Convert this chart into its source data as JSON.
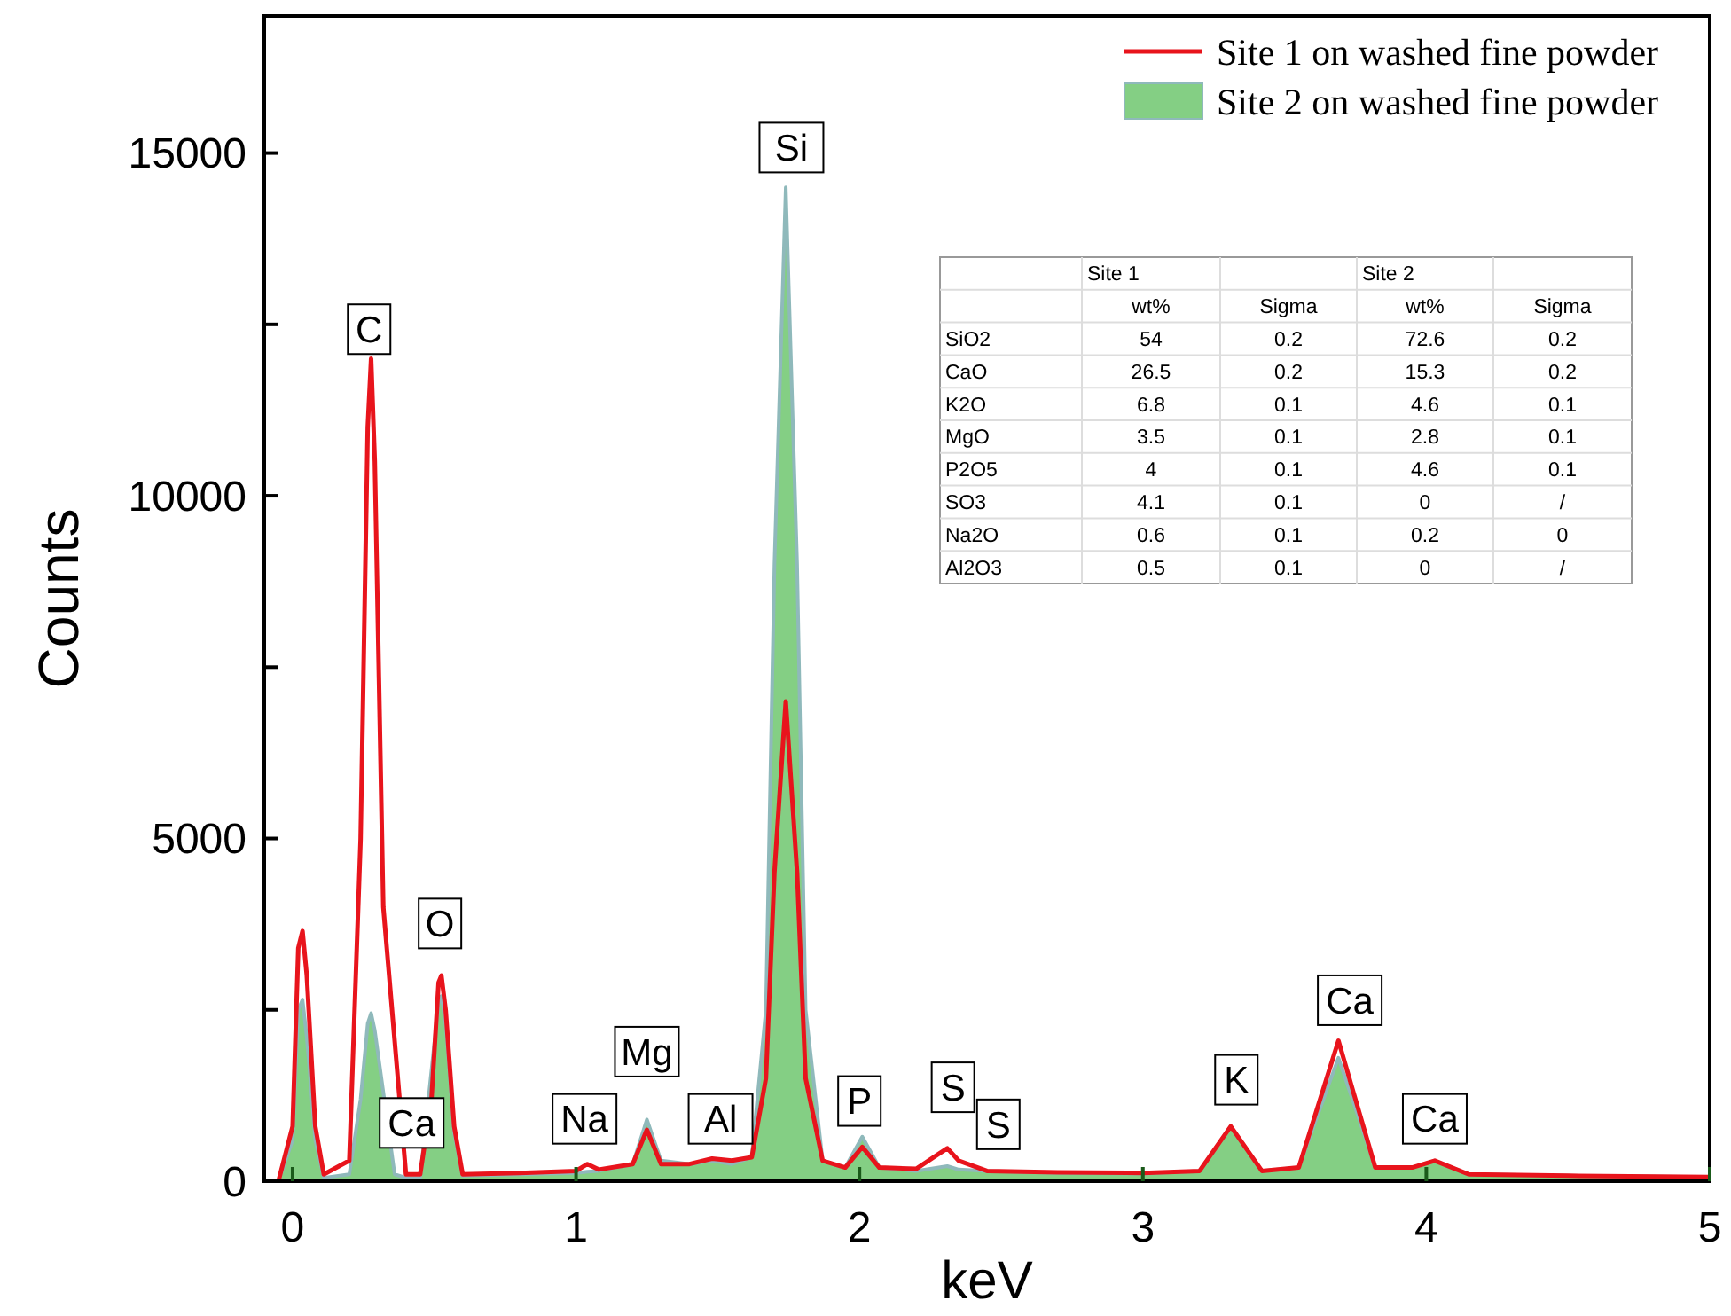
{
  "chart_data": [
    {
      "type": "line",
      "xlabel": "keV",
      "ylabel": "Counts",
      "xlim": [
        -0.1,
        5
      ],
      "ylim": [
        0,
        17000
      ],
      "xticks": [
        0,
        1,
        2,
        3,
        4,
        5
      ],
      "yticks": [
        0,
        {
          "value": 2500,
          "label": null
        },
        5000,
        {
          "value": 7500,
          "label": null
        },
        10000,
        {
          "value": 12500,
          "label": null
        },
        15000
      ],
      "legend": "top right",
      "x": [
        -0.1,
        -0.05,
        0,
        0.02,
        0.035,
        0.05,
        0.08,
        0.11,
        0.2,
        0.24,
        0.265,
        0.277,
        0.29,
        0.32,
        0.36,
        0.4,
        0.45,
        0.49,
        0.515,
        0.525,
        0.54,
        0.57,
        0.6,
        0.8,
        1,
        1.04,
        1.08,
        1.2,
        1.25,
        1.3,
        1.4,
        1.48,
        1.55,
        1.62,
        1.67,
        1.7,
        1.74,
        1.78,
        1.81,
        1.87,
        1.95,
        2.01,
        2.07,
        2.2,
        2.28,
        2.31,
        2.35,
        2.45,
        2.7,
        3,
        3.2,
        3.31,
        3.42,
        3.55,
        3.69,
        3.82,
        3.95,
        4.03,
        4.15,
        4.5,
        5
      ],
      "series": [
        {
          "name": "Site 2 on washed fine powder",
          "type": "area",
          "color": "#84cf84",
          "values": [
            0,
            0,
            600,
            2500,
            2650,
            2100,
            600,
            50,
            100,
            1200,
            2300,
            2450,
            2200,
            null,
            100,
            50,
            50,
            null,
            2600,
            2700,
            2300,
            700,
            80,
            100,
            120,
            140,
            150,
            250,
            900,
            300,
            250,
            300,
            250,
            350,
            2500,
            9000,
            14500,
            9000,
            2500,
            300,
            200,
            650,
            200,
            150,
            200,
            220,
            170,
            150,
            120,
            110,
            150,
            800,
            150,
            200,
            1800,
            200,
            200,
            300,
            100,
            80,
            60
          ]
        },
        {
          "name": "Site 1 on washed fine powder",
          "type": "line",
          "color": "#e8141c",
          "values": [
            0,
            0,
            800,
            3400,
            3650,
            3000,
            800,
            100,
            300,
            5000,
            11000,
            12000,
            10500,
            4000,
            null,
            100,
            100,
            1200,
            2900,
            3000,
            2500,
            800,
            100,
            120,
            150,
            250,
            170,
            250,
            750,
            250,
            250,
            330,
            300,
            350,
            1500,
            4500,
            7000,
            4500,
            1500,
            300,
            200,
            500,
            200,
            180,
            400,
            480,
            300,
            150,
            130,
            120,
            150,
            800,
            150,
            200,
            2050,
            200,
            200,
            300,
            100,
            80,
            60
          ]
        }
      ],
      "annotations": [
        {
          "text": "C",
          "x": 0.27,
          "y": 12430
        },
        {
          "text": "Ca",
          "x": 0.42,
          "y": 850
        },
        {
          "text": "O",
          "x": 0.52,
          "y": 3760
        },
        {
          "text": "Na",
          "x": 1.03,
          "y": 910
        },
        {
          "text": "Mg",
          "x": 1.25,
          "y": 1890
        },
        {
          "text": "Al",
          "x": 1.51,
          "y": 910
        },
        {
          "text": "Si",
          "x": 1.76,
          "y": 15080
        },
        {
          "text": "P",
          "x": 2.0,
          "y": 1170
        },
        {
          "text": "S",
          "x": 2.33,
          "y": 1370
        },
        {
          "text": "S",
          "x": 2.49,
          "y": 830
        },
        {
          "text": "K",
          "x": 3.33,
          "y": 1480
        },
        {
          "text": "Ca",
          "x": 3.73,
          "y": 2640
        },
        {
          "text": "Ca",
          "x": 4.03,
          "y": 910
        }
      ]
    },
    {
      "type": "heatmap",
      "annotations": [
        "Site 1",
        "Site 2"
      ],
      "categories": [
        "wt%",
        "Sigma",
        "wt%",
        "Sigma"
      ],
      "y_categories": [
        "SiO2",
        "CaO",
        "K2O",
        "MgO",
        "P2O5",
        "SO3",
        "Na2O",
        "Al2O3"
      ],
      "cells": [
        [
          54,
          0.2,
          72.6,
          0.2
        ],
        [
          26.5,
          0.2,
          15.3,
          0.2
        ],
        [
          6.8,
          0.1,
          4.6,
          0.1
        ],
        [
          3.5,
          0.1,
          2.8,
          0.1
        ],
        [
          4,
          0.1,
          4.6,
          0.1
        ],
        [
          4.1,
          0.1,
          0,
          null
        ],
        [
          0.6,
          0.1,
          0.2,
          0
        ],
        [
          0.5,
          0.1,
          0,
          null
        ]
      ],
      "cell_labels": [
        [
          "54",
          "0.2",
          "72.6",
          "0.2"
        ],
        [
          "26.5",
          "0.2",
          "15.3",
          "0.2"
        ],
        [
          "6.8",
          "0.1",
          "4.6",
          "0.1"
        ],
        [
          "3.5",
          "0.1",
          "2.8",
          "0.1"
        ],
        [
          "4",
          "0.1",
          "4.6",
          "0.1"
        ],
        [
          "4.1",
          "0.1",
          "0",
          "/"
        ],
        [
          "0.6",
          "0.1",
          "0.2",
          "0"
        ],
        [
          "0.5",
          "0.1",
          "0",
          "/"
        ]
      ]
    }
  ]
}
